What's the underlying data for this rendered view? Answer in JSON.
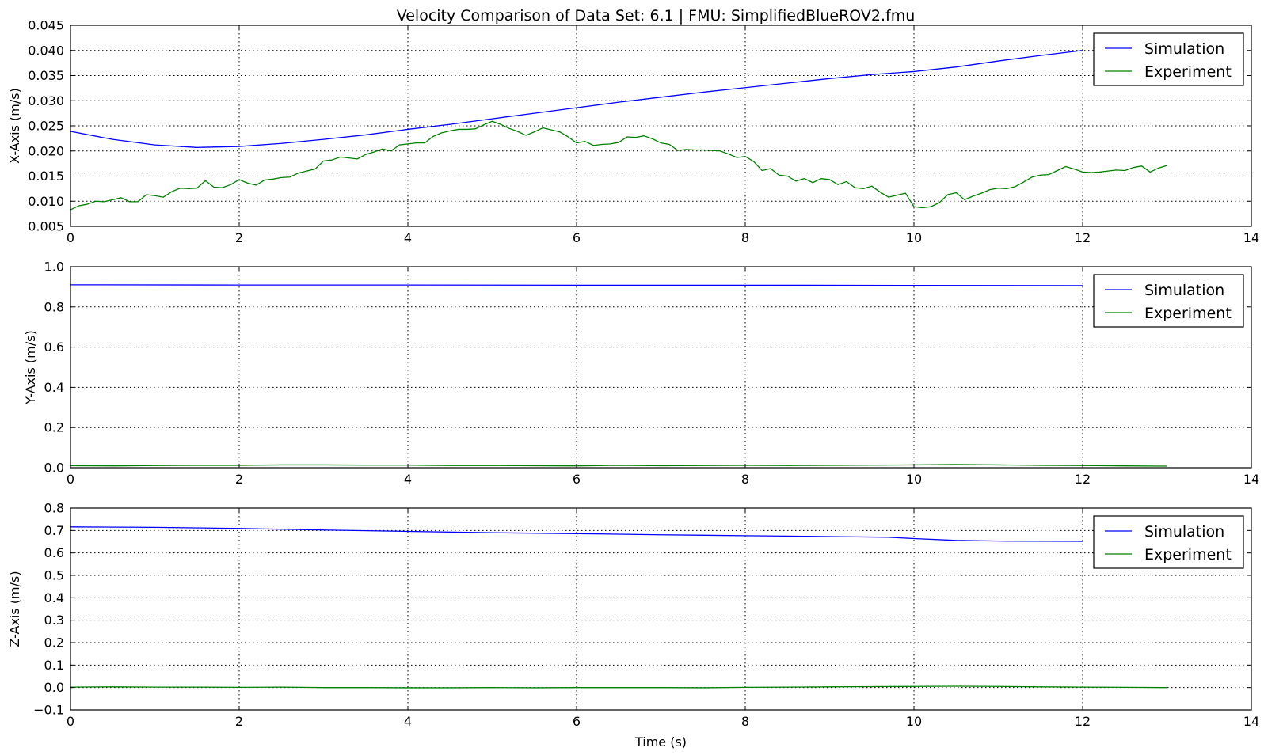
{
  "figure_title": "Velocity Comparison of Data Set: 6.1 | FMU: SimplifiedBlueROV2.fmu",
  "colors": {
    "simulation": "#0000ff",
    "experiment": "#008000"
  },
  "chart_data": [
    {
      "type": "line",
      "ylabel": "X-Axis (m/s)",
      "xlabel": "",
      "xlim": [
        0,
        14
      ],
      "ylim": [
        0.005,
        0.045
      ],
      "xticks": [
        0,
        2,
        4,
        6,
        8,
        10,
        12,
        14
      ],
      "xtick_labels": [
        "0",
        "2",
        "4",
        "6",
        "8",
        "10",
        "12",
        "14"
      ],
      "yticks": [
        0.005,
        0.01,
        0.015,
        0.02,
        0.025,
        0.03,
        0.035,
        0.04,
        0.045
      ],
      "ytick_labels": [
        "0.005",
        "0.010",
        "0.015",
        "0.020",
        "0.025",
        "0.030",
        "0.035",
        "0.040",
        "0.045"
      ],
      "grid": true,
      "legend": "top-right",
      "series": [
        {
          "name": "Simulation",
          "color": "#0000ff",
          "x": [
            0,
            0.5,
            1.0,
            1.5,
            2.0,
            2.5,
            3.0,
            3.5,
            4.0,
            4.5,
            5.0,
            5.5,
            6.0,
            6.5,
            7.0,
            7.5,
            8.0,
            8.5,
            9.0,
            9.5,
            10.0,
            10.5,
            11.0,
            11.5,
            12.0
          ],
          "y": [
            0.0239,
            0.0223,
            0.0212,
            0.0207,
            0.0209,
            0.0215,
            0.0223,
            0.0232,
            0.0243,
            0.0253,
            0.0264,
            0.0275,
            0.0286,
            0.0297,
            0.0307,
            0.0317,
            0.0326,
            0.0335,
            0.0344,
            0.0352,
            0.0358,
            0.0367,
            0.0379,
            0.039,
            0.04
          ]
        },
        {
          "name": "Experiment",
          "color": "#008000",
          "x": [
            0,
            0.1,
            0.2,
            0.3,
            0.4,
            0.5,
            0.6,
            0.7,
            0.8,
            0.9,
            1.0,
            1.1,
            1.2,
            1.3,
            1.4,
            1.5,
            1.6,
            1.7,
            1.8,
            1.9,
            2.0,
            2.1,
            2.2,
            2.3,
            2.4,
            2.5,
            2.6,
            2.7,
            2.8,
            2.9,
            3.0,
            3.1,
            3.2,
            3.3,
            3.4,
            3.5,
            3.6,
            3.7,
            3.8,
            3.9,
            4.0,
            4.1,
            4.2,
            4.3,
            4.4,
            4.5,
            4.6,
            4.7,
            4.8,
            4.9,
            5.0,
            5.1,
            5.2,
            5.3,
            5.4,
            5.5,
            5.6,
            5.7,
            5.8,
            5.9,
            6.0,
            6.1,
            6.2,
            6.3,
            6.4,
            6.5,
            6.6,
            6.7,
            6.8,
            6.9,
            7.0,
            7.1,
            7.2,
            7.3,
            7.4,
            7.5,
            7.6,
            7.7,
            7.8,
            7.9,
            8.0,
            8.1,
            8.2,
            8.3,
            8.4,
            8.5,
            8.6,
            8.7,
            8.8,
            8.9,
            9.0,
            9.1,
            9.2,
            9.3,
            9.4,
            9.5,
            9.6,
            9.7,
            9.8,
            9.9,
            10.0,
            10.1,
            10.2,
            10.3,
            10.4,
            10.5,
            10.6,
            10.7,
            10.8,
            10.9,
            11.0,
            11.1,
            11.2,
            11.3,
            11.4,
            11.5,
            11.6,
            11.7,
            11.8,
            11.9,
            12.0,
            12.1,
            12.2,
            12.3,
            12.4,
            12.5,
            12.6,
            12.7,
            12.8,
            12.9,
            13.0
          ],
          "y": [
            0.0083,
            0.0091,
            0.0094,
            0.01,
            0.0099,
            0.0103,
            0.0107,
            0.0099,
            0.0099,
            0.0113,
            0.0111,
            0.0108,
            0.0119,
            0.0126,
            0.0125,
            0.0126,
            0.0141,
            0.0128,
            0.0127,
            0.0133,
            0.0143,
            0.0136,
            0.0132,
            0.0142,
            0.0144,
            0.0147,
            0.0148,
            0.0156,
            0.016,
            0.0164,
            0.018,
            0.0182,
            0.0188,
            0.0186,
            0.0184,
            0.0193,
            0.0198,
            0.0204,
            0.02,
            0.0212,
            0.0214,
            0.0216,
            0.0216,
            0.0229,
            0.0236,
            0.024,
            0.0243,
            0.0243,
            0.0244,
            0.0252,
            0.0259,
            0.0253,
            0.0245,
            0.0239,
            0.0231,
            0.0238,
            0.0246,
            0.0242,
            0.0238,
            0.0228,
            0.0216,
            0.0219,
            0.0211,
            0.0213,
            0.0214,
            0.0217,
            0.0228,
            0.0227,
            0.023,
            0.0224,
            0.0216,
            0.0213,
            0.0201,
            0.0203,
            0.0202,
            0.0202,
            0.0201,
            0.02,
            0.0194,
            0.0187,
            0.0189,
            0.0179,
            0.0161,
            0.0165,
            0.0152,
            0.015,
            0.014,
            0.0145,
            0.0137,
            0.0145,
            0.0143,
            0.0133,
            0.0139,
            0.0127,
            0.0125,
            0.013,
            0.0118,
            0.0108,
            0.0112,
            0.0116,
            0.0089,
            0.0087,
            0.0089,
            0.0097,
            0.0113,
            0.0117,
            0.0103,
            0.011,
            0.0116,
            0.0123,
            0.0126,
            0.0125,
            0.0129,
            0.0138,
            0.0148,
            0.0152,
            0.0153,
            0.0161,
            0.0169,
            0.0164,
            0.0158,
            0.0157,
            0.0158,
            0.016,
            0.0162,
            0.0161,
            0.0167,
            0.017,
            0.0158,
            0.0166,
            0.0171
          ]
        }
      ]
    },
    {
      "type": "line",
      "ylabel": "Y-Axis (m/s)",
      "xlabel": "",
      "xlim": [
        0,
        14
      ],
      "ylim": [
        0.0,
        1.0
      ],
      "xticks": [
        0,
        2,
        4,
        6,
        8,
        10,
        12,
        14
      ],
      "xtick_labels": [
        "0",
        "2",
        "4",
        "6",
        "8",
        "10",
        "12",
        "14"
      ],
      "yticks": [
        0.0,
        0.2,
        0.4,
        0.6,
        0.8,
        1.0
      ],
      "ytick_labels": [
        "0.0",
        "0.2",
        "0.4",
        "0.6",
        "0.8",
        "1.0"
      ],
      "grid": true,
      "legend": "top-right",
      "series": [
        {
          "name": "Simulation",
          "color": "#0000ff",
          "x": [
            0,
            2,
            4,
            6,
            8,
            10,
            12
          ],
          "y": [
            0.91,
            0.909,
            0.909,
            0.908,
            0.908,
            0.907,
            0.906
          ]
        },
        {
          "name": "Experiment",
          "color": "#008000",
          "x": [
            0,
            0.5,
            1.0,
            1.5,
            2.0,
            2.5,
            3.0,
            3.5,
            4.0,
            4.5,
            5.0,
            5.5,
            6.0,
            6.5,
            7.0,
            7.5,
            8.0,
            8.5,
            9.0,
            9.5,
            10.0,
            10.5,
            11.0,
            11.5,
            12.0,
            12.5,
            13.0
          ],
          "y": [
            0.01,
            0.009,
            0.011,
            0.012,
            0.012,
            0.014,
            0.014,
            0.013,
            0.013,
            0.011,
            0.011,
            0.01,
            0.009,
            0.012,
            0.01,
            0.011,
            0.012,
            0.011,
            0.012,
            0.013,
            0.014,
            0.016,
            0.014,
            0.012,
            0.011,
            0.009,
            0.008
          ]
        }
      ]
    },
    {
      "type": "line",
      "ylabel": "Z-Axis (m/s)",
      "xlabel": "Time (s)",
      "xlim": [
        0,
        14
      ],
      "ylim": [
        -0.1,
        0.8
      ],
      "xticks": [
        0,
        2,
        4,
        6,
        8,
        10,
        12,
        14
      ],
      "xtick_labels": [
        "0",
        "2",
        "4",
        "6",
        "8",
        "10",
        "12",
        "14"
      ],
      "yticks": [
        -0.1,
        0.0,
        0.1,
        0.2,
        0.3,
        0.4,
        0.5,
        0.6,
        0.7,
        0.8
      ],
      "ytick_labels": [
        "−0.1",
        "0.0",
        "0.1",
        "0.2",
        "0.3",
        "0.4",
        "0.5",
        "0.6",
        "0.7",
        "0.8"
      ],
      "grid": true,
      "legend": "top-right",
      "series": [
        {
          "name": "Simulation",
          "color": "#0000ff",
          "x": [
            0,
            1.0,
            2.0,
            3.0,
            4.0,
            5.0,
            6.0,
            7.0,
            8.0,
            9.0,
            9.7,
            10.0,
            10.5,
            11.0,
            12.0
          ],
          "y": [
            0.716,
            0.714,
            0.709,
            0.702,
            0.696,
            0.69,
            0.686,
            0.681,
            0.677,
            0.673,
            0.67,
            0.664,
            0.656,
            0.653,
            0.652
          ]
        },
        {
          "name": "Experiment",
          "color": "#008000",
          "x": [
            0,
            0.5,
            1.0,
            1.5,
            2.0,
            2.5,
            3.0,
            3.5,
            4.0,
            4.5,
            5.0,
            5.5,
            6.0,
            6.5,
            7.0,
            7.5,
            8.0,
            8.5,
            9.0,
            9.5,
            10.0,
            10.5,
            11.0,
            11.5,
            12.0,
            12.5,
            13.0
          ],
          "y": [
            0.002,
            0.003,
            0.002,
            0.002,
            0.001,
            0.002,
            0.0,
            0.0,
            -0.001,
            -0.001,
            0.0,
            -0.001,
            0.0,
            0.0,
            0.0,
            -0.001,
            0.001,
            0.002,
            0.003,
            0.004,
            0.005,
            0.006,
            0.005,
            0.003,
            0.002,
            0.001,
            0.0
          ]
        }
      ]
    }
  ]
}
